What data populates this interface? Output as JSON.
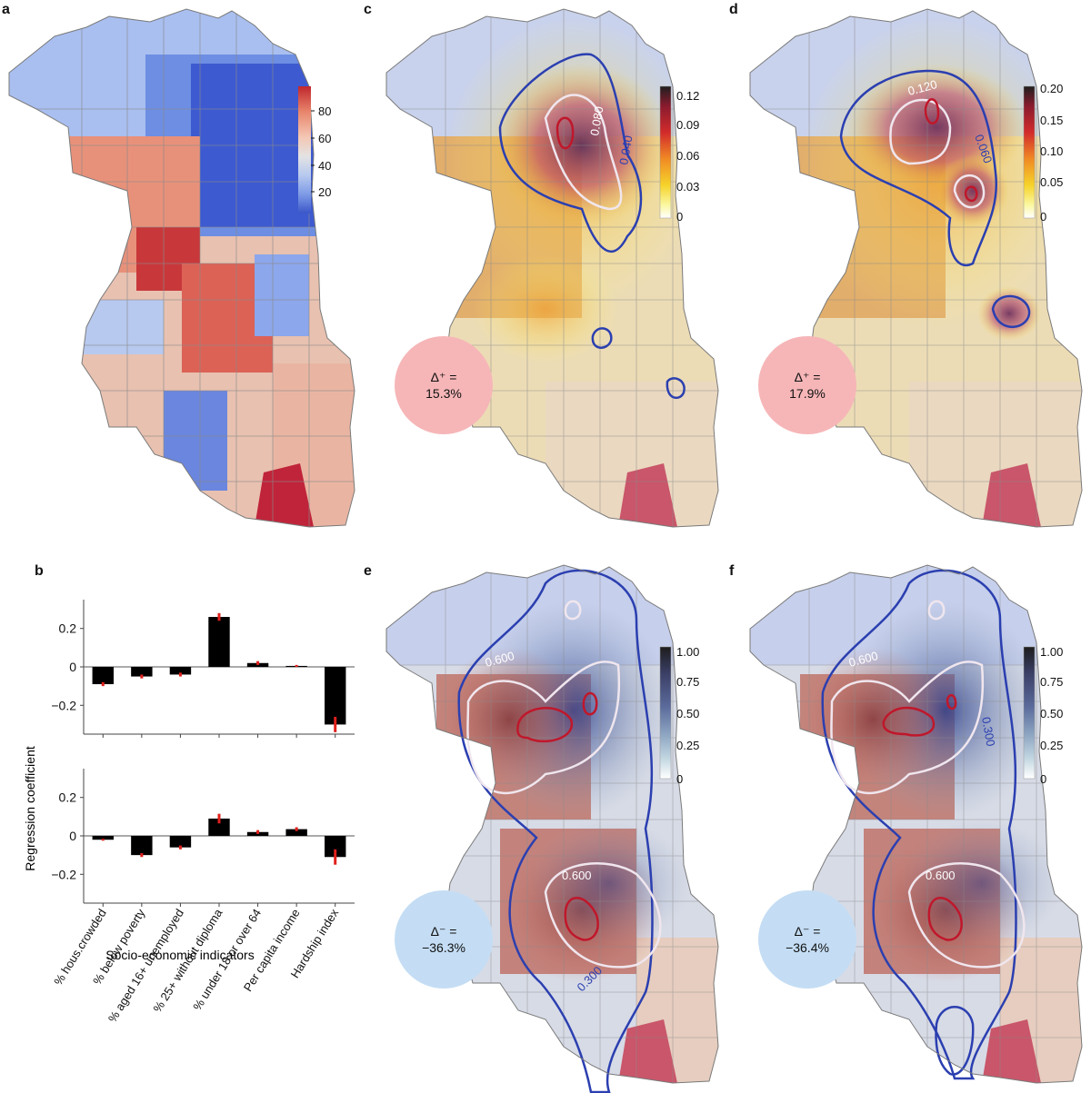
{
  "panels": {
    "a": {
      "letter": "a",
      "colorbar": {
        "ticks": [
          "80",
          "60",
          "40",
          "20"
        ],
        "colors": [
          "#c0272d",
          "#e8856c",
          "#f4c7b4",
          "#e3e3e3",
          "#b7c9ef",
          "#7d9ae6",
          "#3a56c9"
        ]
      }
    },
    "b": {
      "letter": "b",
      "ylabel": "Regression coefficient",
      "xlabel": "Socio-economic indicators"
    },
    "c": {
      "letter": "c",
      "colorbar": {
        "ticks": [
          "0.12",
          "0.09",
          "0.06",
          "0.03",
          "0"
        ],
        "colors": [
          "#1f1f1f",
          "#8a1b2e",
          "#d22b2b",
          "#f08a24",
          "#f6d32a",
          "#fbf7a0",
          "#ffffff"
        ]
      },
      "contour_labels": [
        "0.080",
        "0.040"
      ],
      "delta": {
        "symbol": "Δ⁺ =",
        "value": "15.3%"
      }
    },
    "d": {
      "letter": "d",
      "colorbar": {
        "ticks": [
          "0.20",
          "0.15",
          "0.10",
          "0.05",
          "0"
        ],
        "colors": [
          "#1f1f1f",
          "#8a1b2e",
          "#d22b2b",
          "#f08a24",
          "#f6d32a",
          "#fbf7a0",
          "#ffffff"
        ]
      },
      "contour_labels": [
        "0.120",
        "0.060"
      ],
      "delta": {
        "symbol": "Δ⁺ =",
        "value": "17.9%"
      }
    },
    "e": {
      "letter": "e",
      "colorbar": {
        "ticks": [
          "1.00",
          "0.75",
          "0.50",
          "0.25",
          "0"
        ],
        "colors": [
          "#1d1d1d",
          "#3b3f66",
          "#5a6a9a",
          "#8aa1bf",
          "#c4d8e2",
          "#ffffff"
        ]
      },
      "contour_labels": [
        "0.600",
        "0.600",
        "0.300"
      ],
      "delta": {
        "symbol": "Δ⁻ =",
        "value": "−36.3%"
      }
    },
    "f": {
      "letter": "f",
      "colorbar": {
        "ticks": [
          "1.00",
          "0.75",
          "0.50",
          "0.25",
          "0"
        ],
        "colors": [
          "#1d1d1d",
          "#3b3f66",
          "#5a6a9a",
          "#8aa1bf",
          "#c4d8e2",
          "#ffffff"
        ]
      },
      "contour_labels": [
        "0.600",
        "0.600",
        "0.300"
      ],
      "delta": {
        "symbol": "Δ⁻ =",
        "value": "−36.4%"
      }
    }
  },
  "chart_data": [
    {
      "type": "bar",
      "panel": "b-top",
      "categories": [
        "% hous.crowded",
        "% below poverty",
        "% aged 16+ unemployed",
        "% 25+ without diploma",
        "% under 18 or over 64",
        "Per capita income",
        "Hardship index"
      ],
      "values": [
        -0.09,
        -0.05,
        -0.04,
        0.26,
        0.02,
        0.005,
        -0.3
      ],
      "errors": [
        0.01,
        0.01,
        0.01,
        0.02,
        0.01,
        0.005,
        0.04
      ],
      "ylabel": "Regression coefficient",
      "ylim": [
        -0.35,
        0.35
      ],
      "yticks": [
        "0.2",
        "0",
        "−0.2"
      ],
      "color": "#000000",
      "error_color": "#e0201c"
    },
    {
      "type": "bar",
      "panel": "b-bottom",
      "categories": [
        "% hous.crowded",
        "% below poverty",
        "% aged 16+ unemployed",
        "% 25+ without diploma",
        "% under 18 or over 64",
        "Per capita income",
        "Hardship index"
      ],
      "values": [
        -0.02,
        -0.1,
        -0.06,
        0.09,
        0.02,
        0.035,
        -0.11
      ],
      "errors": [
        0.005,
        0.01,
        0.01,
        0.025,
        0.01,
        0.01,
        0.04
      ],
      "xlabel": "Socio-economic indicators",
      "ylim": [
        -0.35,
        0.35
      ],
      "yticks": [
        "0.2",
        "0",
        "−0.2"
      ],
      "color": "#000000",
      "error_color": "#e0201c"
    }
  ]
}
